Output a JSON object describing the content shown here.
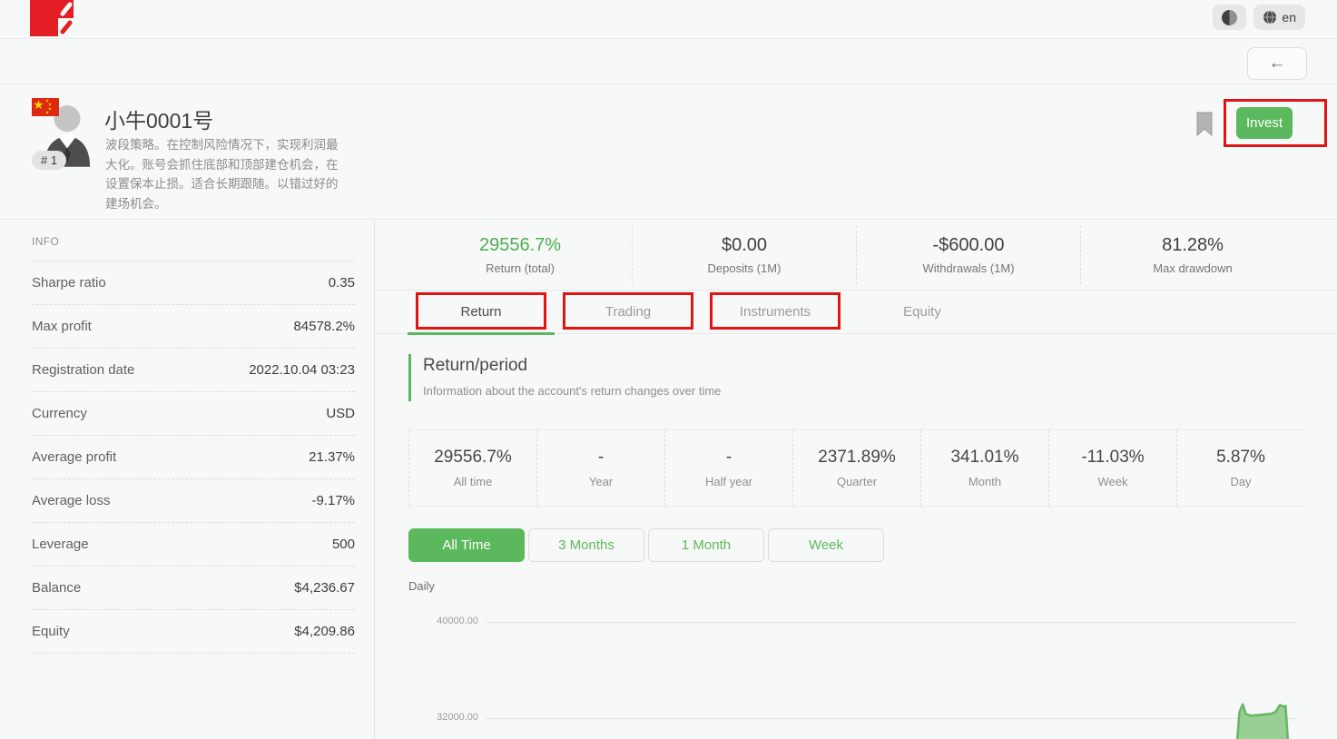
{
  "header": {
    "logo_name": "red-slash-logo",
    "theme_toggle_name": "contrast-icon",
    "language": {
      "label": "en",
      "icon": "globe-icon"
    },
    "back_arrow": "←"
  },
  "profile": {
    "flag": "china-flag",
    "rank_badge": "# 1",
    "name": "小牛0001号",
    "description": "波段策略。在控制风险情况下，实现利润最大化。账号会抓住底部和顶部建仓机会，在设置保本止损。适合长期跟随。以错过好的建场机会。",
    "invest_button": "Invest"
  },
  "info_panel": {
    "title": "INFO",
    "rows": [
      {
        "label": "Sharpe ratio",
        "value": "0.35"
      },
      {
        "label": "Max profit",
        "value": "84578.2%"
      },
      {
        "label": "Registration date",
        "value": "2022.10.04 03:23"
      },
      {
        "label": "Currency",
        "value": "USD"
      },
      {
        "label": "Average profit",
        "value": "21.37%"
      },
      {
        "label": "Average loss",
        "value": "-9.17%"
      },
      {
        "label": "Leverage",
        "value": "500"
      },
      {
        "label": "Balance",
        "value": "$4,236.67"
      },
      {
        "label": "Equity",
        "value": "$4,209.86"
      }
    ]
  },
  "summary_stats": [
    {
      "value": "29556.7%",
      "label": "Return (total)",
      "highlight": true
    },
    {
      "value": "$0.00",
      "label": "Deposits (1M)"
    },
    {
      "value": "-$600.00",
      "label": "Withdrawals (1M)"
    },
    {
      "value": "81.28%",
      "label": "Max drawdown"
    }
  ],
  "tabs": [
    {
      "label": "Return",
      "active": true,
      "annotated": true
    },
    {
      "label": "Trading",
      "annotated": true
    },
    {
      "label": "Instruments",
      "annotated": true
    },
    {
      "label": "Equity"
    }
  ],
  "section": {
    "title": "Return/period",
    "subtitle": "Information about the account's return changes over time"
  },
  "period_stats": [
    {
      "value": "29556.7%",
      "label": "All time"
    },
    {
      "value": "-",
      "label": "Year"
    },
    {
      "value": "-",
      "label": "Half year"
    },
    {
      "value": "2371.89%",
      "label": "Quarter"
    },
    {
      "value": "341.01%",
      "label": "Month"
    },
    {
      "value": "-11.03%",
      "label": "Week"
    },
    {
      "value": "5.87%",
      "label": "Day"
    }
  ],
  "range_buttons": [
    {
      "label": "All Time",
      "active": true
    },
    {
      "label": "3 Months"
    },
    {
      "label": "1 Month"
    },
    {
      "label": "Week"
    }
  ],
  "chart_data": {
    "type": "area",
    "frequency_label": "Daily",
    "yticks": [
      {
        "label": "40000.00",
        "value": 40000
      },
      {
        "label": "32000.00",
        "value": 32000
      }
    ],
    "grid": true,
    "series": [
      {
        "name": "daily-return-area",
        "fill": "#98cf94",
        "stroke": "#67b565",
        "points": [
          {
            "x": 0.927,
            "value": 29900
          },
          {
            "x": 0.93,
            "value": 32500
          },
          {
            "x": 0.934,
            "value": 33150
          },
          {
            "x": 0.938,
            "value": 32350
          },
          {
            "x": 0.944,
            "value": 32200
          },
          {
            "x": 0.958,
            "value": 32280
          },
          {
            "x": 0.97,
            "value": 32380
          },
          {
            "x": 0.975,
            "value": 32550
          },
          {
            "x": 0.98,
            "value": 33100
          },
          {
            "x": 0.984,
            "value": 32950
          },
          {
            "x": 0.987,
            "value": 33020
          },
          {
            "x": 0.99,
            "value": 29900
          }
        ]
      }
    ]
  },
  "colors": {
    "accent_green": "#5cb85c",
    "value_green": "#4caf50",
    "annotation_red": "#e11313",
    "logo_red": "#e31e24",
    "flag_red": "#de2910"
  }
}
